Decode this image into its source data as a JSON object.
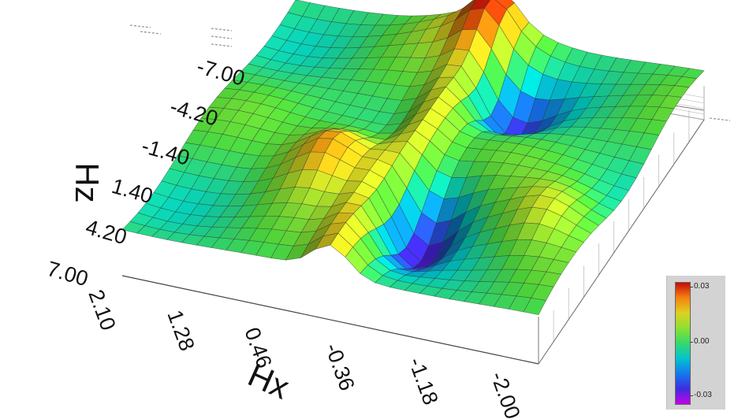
{
  "chart_data": {
    "type": "surface",
    "xlabel": "Hx",
    "ylabel": "Hz",
    "x_ticks": [
      "2.10",
      "1.28",
      "0.46",
      "-0.36",
      "-1.18",
      "-2.00"
    ],
    "y_ticks": [
      "-7.00",
      "-4.20",
      "-1.40",
      "1.40",
      "4.20",
      "7.00"
    ],
    "x_range": [
      2.1,
      -2.0
    ],
    "y_range": [
      -7.0,
      7.0
    ],
    "colorbar": {
      "max_label": "0.03",
      "mid_label": "0.00",
      "min_label": "-0.03",
      "range": [
        -0.03,
        0.03
      ]
    },
    "grid": true
  }
}
